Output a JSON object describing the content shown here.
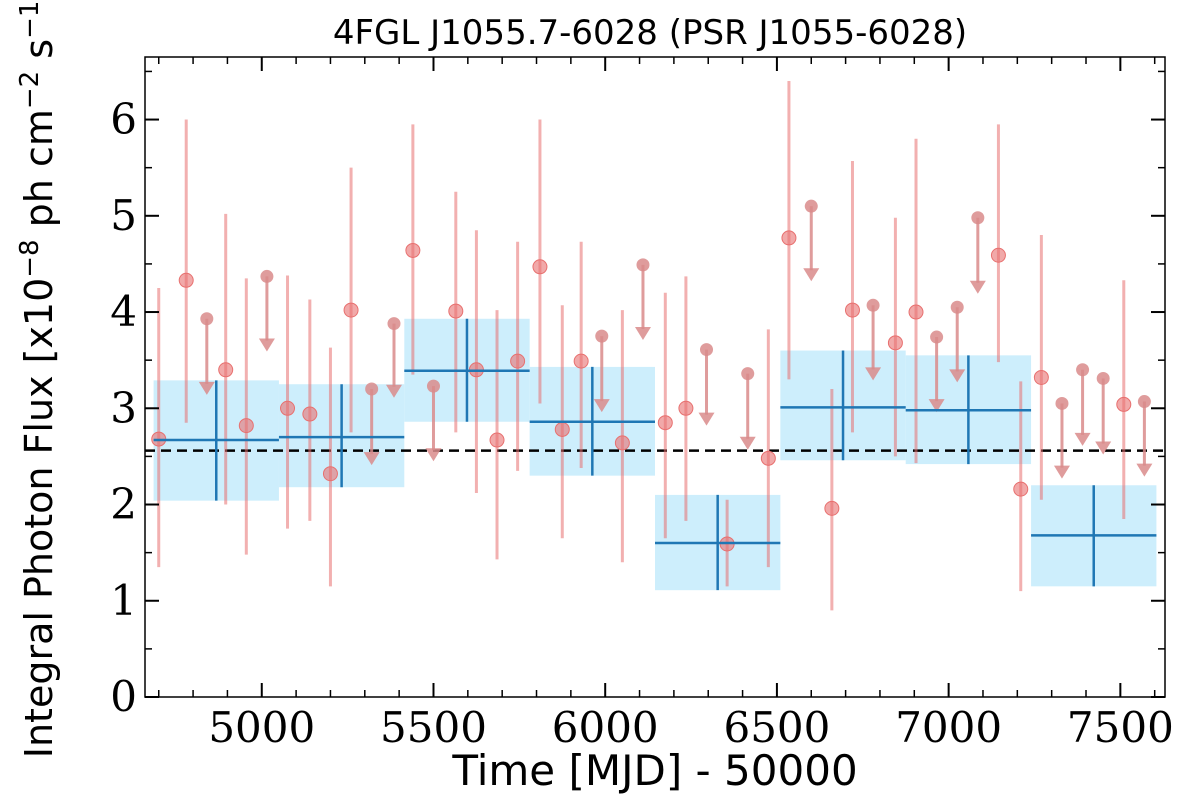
{
  "chart_data": {
    "type": "scatter",
    "title": "4FGL J1055.7-6028 (PSR J1055-6028)",
    "xlabel": "Time [MJD] - 50000",
    "ylabel": "Integral Photon Flux [x10",
    "ylabel_sup1": "−8",
    "ylabel_mid": " ph cm",
    "ylabel_sup2": "−2",
    "ylabel_mid2": " s",
    "ylabel_sup3": "−1",
    "ylabel_end": "]",
    "xlim": [
      4660,
      7630
    ],
    "ylim": [
      0,
      6.65
    ],
    "xticks": [
      5000,
      5500,
      6000,
      6500,
      7000,
      7500
    ],
    "yticks": [
      0,
      1,
      2,
      3,
      4,
      5,
      6
    ],
    "xtick_labels": [
      "5000",
      "5500",
      "6000",
      "6500",
      "7000",
      "7500"
    ],
    "ytick_labels": [
      "0",
      "1",
      "2",
      "3",
      "4",
      "5",
      "6"
    ],
    "reference_line": {
      "y": 2.56,
      "style": "dashed",
      "color": "#000000"
    },
    "colors": {
      "points": "#e8706f",
      "upper_limits": "#d98b8b",
      "bins": "#1f77b4",
      "bin_band": "#cdeefc"
    },
    "series": [
      {
        "type": "points_with_errors",
        "points": [
          {
            "x": 4700,
            "y": 2.68,
            "lo": 1.35,
            "hi": 4.25
          },
          {
            "x": 4780,
            "y": 4.33,
            "lo": 2.85,
            "hi": 6.0
          },
          {
            "x": 4895,
            "y": 3.4,
            "lo": 2.0,
            "hi": 5.02
          },
          {
            "x": 4955,
            "y": 2.82,
            "lo": 1.48,
            "hi": 4.35
          },
          {
            "x": 5075,
            "y": 3.0,
            "lo": 1.75,
            "hi": 4.38
          },
          {
            "x": 5140,
            "y": 2.94,
            "lo": 1.83,
            "hi": 4.13
          },
          {
            "x": 5200,
            "y": 2.32,
            "lo": 1.15,
            "hi": 3.63
          },
          {
            "x": 5260,
            "y": 4.02,
            "lo": 2.75,
            "hi": 5.5
          },
          {
            "x": 5440,
            "y": 4.64,
            "lo": 3.35,
            "hi": 5.95
          },
          {
            "x": 5565,
            "y": 4.01,
            "lo": 2.75,
            "hi": 5.25
          },
          {
            "x": 5625,
            "y": 3.4,
            "lo": 2.12,
            "hi": 4.85
          },
          {
            "x": 5685,
            "y": 2.67,
            "lo": 1.43,
            "hi": 4.02
          },
          {
            "x": 5745,
            "y": 3.49,
            "lo": 2.35,
            "hi": 4.73
          },
          {
            "x": 5810,
            "y": 4.47,
            "lo": 3.05,
            "hi": 6.0
          },
          {
            "x": 5875,
            "y": 2.78,
            "lo": 1.65,
            "hi": 4.07
          },
          {
            "x": 5930,
            "y": 3.49,
            "lo": 2.38,
            "hi": 4.73
          },
          {
            "x": 6050,
            "y": 2.64,
            "lo": 1.4,
            "hi": 4.02
          },
          {
            "x": 6175,
            "y": 2.85,
            "lo": 1.65,
            "hi": 4.2
          },
          {
            "x": 6235,
            "y": 3.0,
            "lo": 1.83,
            "hi": 4.37
          },
          {
            "x": 6355,
            "y": 1.59,
            "lo": 1.15,
            "hi": 2.05
          },
          {
            "x": 6475,
            "y": 2.48,
            "lo": 1.35,
            "hi": 3.82
          },
          {
            "x": 6535,
            "y": 4.77,
            "lo": 3.3,
            "hi": 6.4
          },
          {
            "x": 6660,
            "y": 1.96,
            "lo": 0.9,
            "hi": 3.2
          },
          {
            "x": 6720,
            "y": 4.02,
            "lo": 2.75,
            "hi": 5.57
          },
          {
            "x": 6845,
            "y": 3.68,
            "lo": 2.5,
            "hi": 4.98
          },
          {
            "x": 6905,
            "y": 4.0,
            "lo": 2.43,
            "hi": 5.8
          },
          {
            "x": 7145,
            "y": 4.59,
            "lo": 3.48,
            "hi": 5.95
          },
          {
            "x": 7210,
            "y": 2.16,
            "lo": 1.1,
            "hi": 3.28
          },
          {
            "x": 7270,
            "y": 3.32,
            "lo": 2.05,
            "hi": 4.8
          },
          {
            "x": 7510,
            "y": 3.04,
            "lo": 1.85,
            "hi": 4.33
          }
        ]
      },
      {
        "type": "upper_limits",
        "points": [
          {
            "x": 4840,
            "y": 3.93,
            "arrow_to": 3.15
          },
          {
            "x": 5015,
            "y": 4.37,
            "arrow_to": 3.6
          },
          {
            "x": 5320,
            "y": 3.2,
            "arrow_to": 2.42
          },
          {
            "x": 5385,
            "y": 3.88,
            "arrow_to": 3.12
          },
          {
            "x": 5500,
            "y": 3.23,
            "arrow_to": 2.46
          },
          {
            "x": 5990,
            "y": 3.75,
            "arrow_to": 2.97
          },
          {
            "x": 6110,
            "y": 4.49,
            "arrow_to": 3.72
          },
          {
            "x": 6295,
            "y": 3.61,
            "arrow_to": 2.83
          },
          {
            "x": 6415,
            "y": 3.36,
            "arrow_to": 2.58
          },
          {
            "x": 6600,
            "y": 5.1,
            "arrow_to": 4.33
          },
          {
            "x": 6780,
            "y": 4.07,
            "arrow_to": 3.3
          },
          {
            "x": 6965,
            "y": 3.74,
            "arrow_to": 2.97
          },
          {
            "x": 7025,
            "y": 4.05,
            "arrow_to": 3.28
          },
          {
            "x": 7085,
            "y": 4.98,
            "arrow_to": 4.2
          },
          {
            "x": 7330,
            "y": 3.05,
            "arrow_to": 2.28
          },
          {
            "x": 7390,
            "y": 3.4,
            "arrow_to": 2.62
          },
          {
            "x": 7450,
            "y": 3.31,
            "arrow_to": 2.53
          },
          {
            "x": 7570,
            "y": 3.07,
            "arrow_to": 2.3
          }
        ]
      },
      {
        "type": "binned",
        "bins": [
          {
            "x0": 4685,
            "x1": 5050,
            "y": 2.67,
            "lo": 2.04,
            "hi": 3.29
          },
          {
            "x0": 5050,
            "x1": 5415,
            "y": 2.7,
            "lo": 2.18,
            "hi": 3.25
          },
          {
            "x0": 5415,
            "x1": 5780,
            "y": 3.39,
            "lo": 2.86,
            "hi": 3.93
          },
          {
            "x0": 5780,
            "x1": 6145,
            "y": 2.86,
            "lo": 2.3,
            "hi": 3.43
          },
          {
            "x0": 6145,
            "x1": 6510,
            "y": 1.6,
            "lo": 1.11,
            "hi": 2.1
          },
          {
            "x0": 6510,
            "x1": 6875,
            "y": 3.01,
            "lo": 2.46,
            "hi": 3.6
          },
          {
            "x0": 6875,
            "x1": 7240,
            "y": 2.98,
            "lo": 2.42,
            "hi": 3.55
          },
          {
            "x0": 7240,
            "x1": 7605,
            "y": 1.68,
            "lo": 1.15,
            "hi": 2.2
          }
        ]
      }
    ]
  }
}
